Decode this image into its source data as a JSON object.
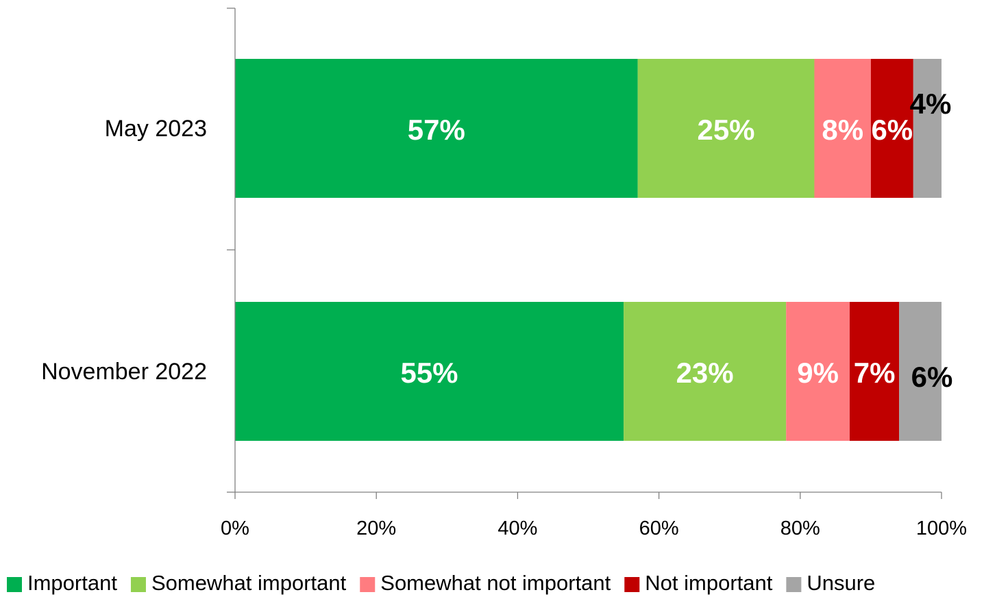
{
  "chart_data": {
    "type": "bar",
    "orientation": "horizontal",
    "stacked": true,
    "percent_stacked": true,
    "categories": [
      "May 2023",
      "November 2022"
    ],
    "series": [
      {
        "name": "Important",
        "color": "#00AF50",
        "values": [
          57,
          55
        ],
        "labels": [
          "57%",
          "55%"
        ],
        "label_color": "#ffffff"
      },
      {
        "name": "Somewhat important",
        "color": "#92D050",
        "values": [
          25,
          23
        ],
        "labels": [
          "25%",
          "23%"
        ],
        "label_color": "#ffffff"
      },
      {
        "name": "Somewhat not important",
        "color": "#FF7C80",
        "values": [
          8,
          9
        ],
        "labels": [
          "8%",
          "9%"
        ],
        "label_color": "#ffffff"
      },
      {
        "name": "Not important",
        "color": "#C00000",
        "values": [
          6,
          7
        ],
        "labels": [
          "6%",
          "7%"
        ],
        "label_color": "#ffffff"
      },
      {
        "name": "Unsure",
        "color": "#A5A5A5",
        "values": [
          4,
          6
        ],
        "labels": [
          "4%",
          "6%"
        ],
        "label_color": "#000000"
      }
    ],
    "x_ticks": [
      "0%",
      "20%",
      "40%",
      "60%",
      "80%",
      "100%"
    ],
    "xlim": [
      0,
      100
    ],
    "grid": false,
    "legend_position": "bottom",
    "title": "",
    "xlabel": "",
    "ylabel": ""
  }
}
